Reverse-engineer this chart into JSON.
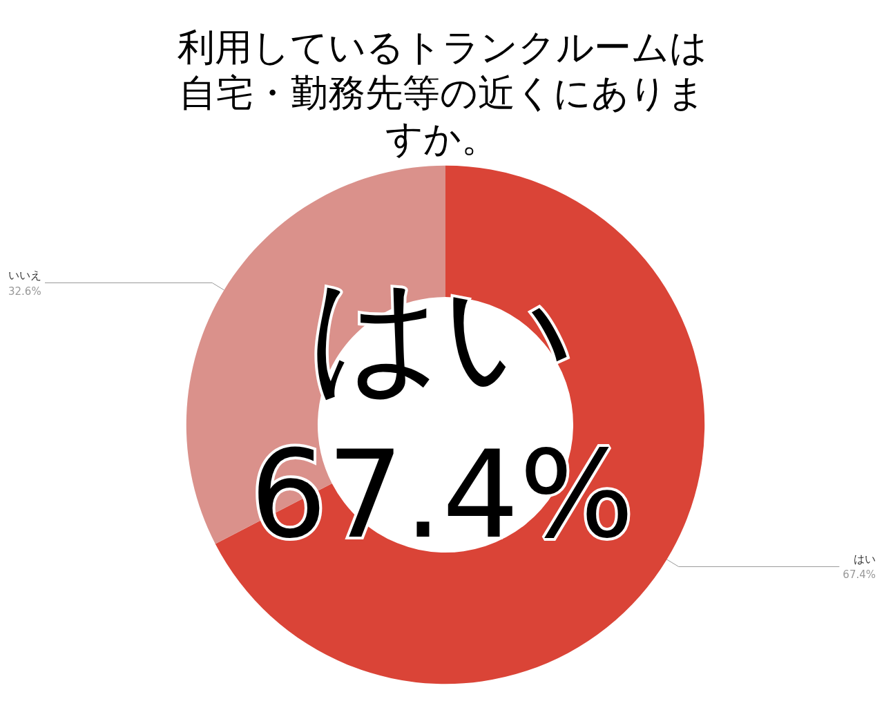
{
  "chart_data": {
    "type": "donut",
    "title": "利用しているトランクルームは自宅・勤務先等の近くにありますか。",
    "categories": [
      "はい",
      "いいえ"
    ],
    "values": [
      67.4,
      32.6
    ],
    "value_labels": [
      "67.4%",
      "32.6%"
    ],
    "colors": [
      "#da4437",
      "#da918b"
    ],
    "annotations": [
      "はい",
      "67.4%"
    ],
    "legend": false
  }
}
